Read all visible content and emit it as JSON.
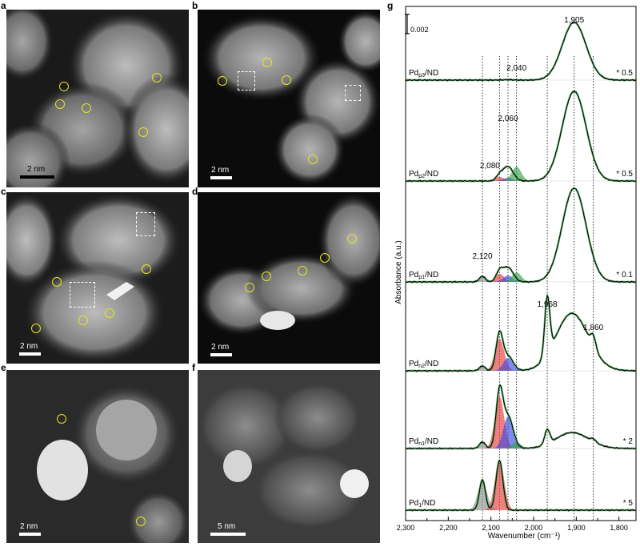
{
  "panels": [
    {
      "label": "a",
      "scale": "2 nm",
      "circles": [
        [
          80,
          108
        ],
        [
          75,
          130
        ],
        [
          108,
          135
        ],
        [
          196,
          97
        ],
        [
          179,
          165
        ]
      ],
      "boxes": []
    },
    {
      "label": "b",
      "scale": "2 nm",
      "circles": [
        [
          278,
          101
        ],
        [
          334,
          78
        ],
        [
          358,
          100
        ],
        [
          391,
          199
        ]
      ],
      "boxes": [
        [
          297,
          89,
          22,
          24
        ],
        [
          431,
          106,
          20,
          20
        ]
      ]
    },
    {
      "label": "c",
      "scale": "2 nm",
      "circles": [
        [
          71,
          352
        ],
        [
          183,
          336
        ],
        [
          104,
          400
        ],
        [
          137,
          391
        ],
        [
          45,
          410
        ]
      ],
      "boxes": [
        [
          87,
          352,
          32,
          32
        ],
        [
          170,
          265,
          24,
          30
        ]
      ]
    },
    {
      "label": "d",
      "scale": "2 nm",
      "circles": [
        [
          312,
          359
        ],
        [
          333,
          345
        ],
        [
          378,
          338
        ],
        [
          406,
          322
        ],
        [
          440,
          298
        ]
      ],
      "boxes": []
    },
    {
      "label": "e",
      "scale": "2 nm",
      "circles": [
        [
          77,
          523
        ],
        [
          176,
          651
        ]
      ],
      "boxes": []
    },
    {
      "label": "f",
      "scale": "5 nm",
      "circles": [],
      "boxes": []
    }
  ],
  "chart_data": {
    "type": "line",
    "panel_label": "g",
    "xlabel": "Wavenumber (cm⁻¹)",
    "ylabel": "Absorbance (a.u.)",
    "xlim": [
      2300,
      1760
    ],
    "x_ticks": [
      "2,300",
      "2,200",
      "2,100",
      "2,000",
      "1,900",
      "1,800"
    ],
    "x_tick_values": [
      2300,
      2200,
      2100,
      2000,
      1900,
      1800
    ],
    "scale_bar": "0.002",
    "line_colors": {
      "measured": "#000000",
      "fit": "#3aa04a",
      "pd1": "#e83a3a",
      "pd2": "#3a4ae0",
      "pd3": "#3aa04a",
      "gray": "#909090"
    },
    "traces": [
      {
        "sample": "Pd",
        "sub": "p3",
        "suffix": "/ND",
        "multiplier": "* 0.5",
        "baseline": 100,
        "amp": [
          0,
          0.06,
          0.45,
          0,
          72
        ],
        "comp": []
      },
      {
        "sample": "Pd",
        "sub": "p2",
        "suffix": "/ND",
        "multiplier": "* 0.5",
        "baseline": 226,
        "amp": [
          0,
          6,
          18,
          0,
          112
        ],
        "comp": [
          [
            2080,
            5
          ],
          [
            2060,
            4
          ],
          [
            2040,
            18
          ]
        ]
      },
      {
        "sample": "Pd",
        "sub": "p1",
        "suffix": "/ND",
        "multiplier": "* 0.1",
        "baseline": 352,
        "amp": [
          7,
          12,
          18,
          0,
          117
        ],
        "comp": [
          [
            2120,
            6
          ],
          [
            2080,
            10
          ],
          [
            2060,
            8
          ],
          [
            2040,
            12
          ]
        ]
      },
      {
        "sample": "Pd",
        "sub": "n2",
        "suffix": "/ND",
        "multiplier": "",
        "baseline": 463,
        "amp": [
          6,
          45,
          18,
          72,
          40
        ],
        "comp": [
          [
            2120,
            5
          ],
          [
            2080,
            40
          ],
          [
            2060,
            16
          ]
        ]
      },
      {
        "sample": "Pd",
        "sub": "n1",
        "suffix": "/ND",
        "multiplier": "* 2",
        "baseline": 560,
        "amp": [
          8,
          68,
          40,
          18,
          12
        ],
        "comp": [
          [
            2120,
            6
          ],
          [
            2080,
            65
          ],
          [
            2060,
            40
          ],
          [
            2040,
            8
          ]
        ]
      },
      {
        "sample": "Pd",
        "sub": "1",
        "suffix": "/ND",
        "multiplier": "* 5",
        "baseline": 637,
        "amp": [
          38,
          62,
          0,
          0,
          0
        ],
        "comp": [
          [
            2120,
            36
          ],
          [
            2080,
            62
          ]
        ]
      }
    ],
    "annotations": [
      {
        "text": "1,905",
        "x": 1905
      },
      {
        "text": "2,040",
        "x": 2040
      },
      {
        "text": "2,060",
        "x": 2060
      },
      {
        "text": "2,080",
        "x": 2080
      },
      {
        "text": "2,120",
        "x": 2120
      },
      {
        "text": "1,968",
        "x": 1968
      },
      {
        "text": "1,860",
        "x": 1860
      }
    ],
    "dotted_lines": [
      2120,
      2080,
      2060,
      2040,
      1968,
      1905,
      1860
    ]
  }
}
